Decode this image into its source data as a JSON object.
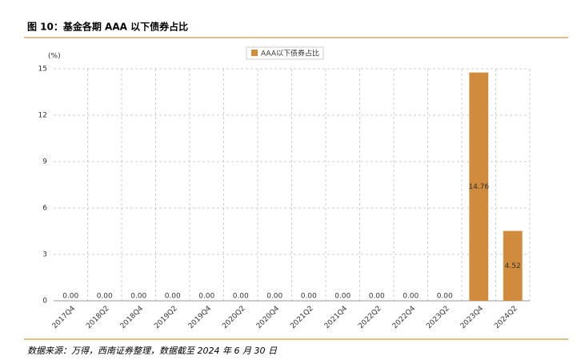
{
  "figure_title": "图 10：基金各期 AAA 以下债券占比",
  "source": "数据来源：万得，西南证券整理，数据截至 2024 年 6 月 30 日",
  "chart_data": {
    "type": "bar",
    "y_label": "(%)",
    "categories": [
      "2017Q4",
      "2018Q2",
      "2018Q4",
      "2019Q2",
      "2019Q4",
      "2020Q2",
      "2020Q4",
      "2021Q2",
      "2021Q4",
      "2022Q2",
      "2022Q4",
      "2023Q2",
      "2023Q4",
      "2024Q2"
    ],
    "series": [
      {
        "name": "AAA以下债券占比",
        "color": "#d08b3c",
        "values": [
          0,
          0,
          0,
          0,
          0,
          0,
          0,
          0,
          0,
          0,
          0,
          0,
          14.76,
          4.52
        ],
        "value_labels": [
          "0.00",
          "0.00",
          "0.00",
          "0.00",
          "0.00",
          "0.00",
          "0.00",
          "0.00",
          "0.00",
          "0.00",
          "0.00",
          "0.00",
          "14.76",
          "4.52"
        ]
      }
    ],
    "ylim": [
      0,
      15
    ],
    "yticks": [
      0,
      3,
      6,
      9,
      12,
      15
    ],
    "grid": true,
    "legend": "top"
  }
}
